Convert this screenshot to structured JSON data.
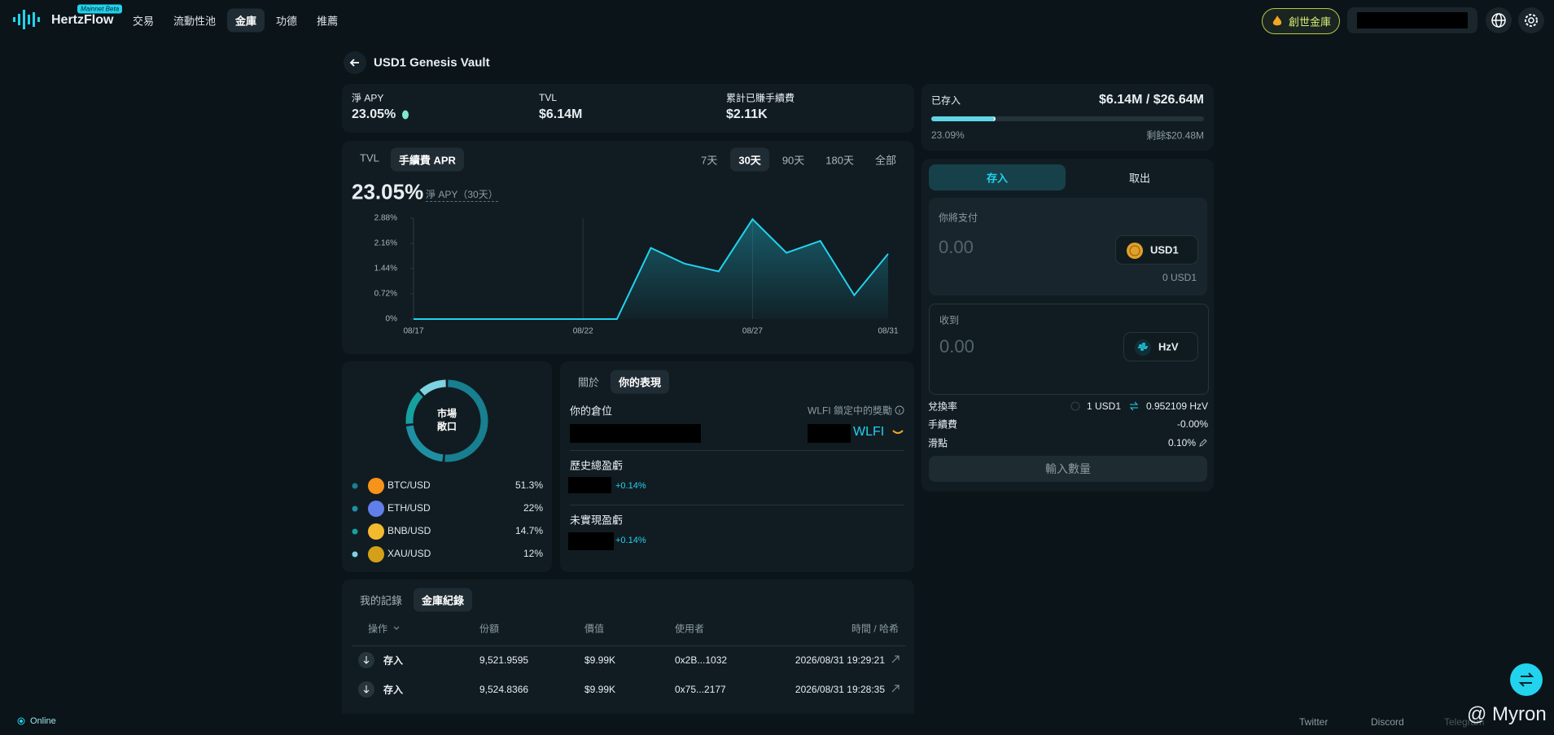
{
  "nav": {
    "logo": "HertzFlow",
    "badge": "Mainnet Beta",
    "links": {
      "items": [
        "交易",
        "流動性池",
        "金庫",
        "功德",
        "推薦"
      ],
      "active": 2
    },
    "genesis": "創世金庫"
  },
  "page_title": "USD1 Genesis Vault",
  "stats": [
    {
      "label": "淨 APY",
      "value": "23.05%"
    },
    {
      "label": "TVL",
      "value": "$6.14M"
    },
    {
      "label": "累計已賺手續費",
      "value": "$2.11K"
    }
  ],
  "capacity": {
    "label": "已存入",
    "value": "$6.14M / $26.64M",
    "filled": {
      "value": 23.09,
      "label": "23.09%"
    },
    "remaining": "剩餘$20.48M"
  },
  "chart": {
    "tabs": {
      "items": [
        "TVL",
        "手續費 APR"
      ],
      "active": 1
    },
    "ranges": {
      "items": [
        "7天",
        "30天",
        "90天",
        "180天",
        "全部"
      ],
      "active": 1
    },
    "headline": "23.05%",
    "headline_label": "淨 APY（30天）"
  },
  "chart_data": [
    {
      "type": "line",
      "categories": [
        "08/17",
        null,
        null,
        null,
        null,
        "08/22",
        null,
        null,
        null,
        null,
        "08/27",
        null,
        null,
        null,
        "08/31"
      ],
      "values": [
        0,
        0,
        0,
        0,
        0,
        0,
        0,
        2.03,
        1.58,
        1.36,
        2.85,
        1.89,
        2.23,
        0.68,
        1.86
      ],
      "color": "#22d3ee",
      "ylim": [
        0,
        2.88
      ],
      "yticks": [
        {
          "value": 0,
          "label": "0%"
        },
        {
          "value": 0.72,
          "label": "0.72%"
        },
        {
          "value": 1.44,
          "label": "1.44%"
        },
        {
          "value": 2.16,
          "label": "2.16%"
        },
        {
          "value": 2.88,
          "label": "2.88%"
        }
      ],
      "grid": "x"
    },
    {
      "type": "pie",
      "center_label": [
        "市場",
        "敞口"
      ],
      "categories": [
        "BTC/USD",
        "ETH/USD",
        "BNB/USD",
        "XAU/USD"
      ],
      "values": [
        51.3,
        22,
        14.7,
        12
      ],
      "value_labels": [
        "51.3%",
        "22%",
        "14.7%",
        "12%"
      ],
      "colors": [
        "#177f8f",
        "#1f90a3",
        "#16a0a0",
        "#7dd3e0"
      ]
    }
  ],
  "performance": {
    "tabs": {
      "items": [
        "關於",
        "你的表現"
      ],
      "active": 1
    },
    "position": "你的倉位",
    "reward_label": "WLFI 鎖定中的獎勵",
    "reward_token": "WLFI",
    "history_label": "歷史總盈虧",
    "history_value": "+0.14%",
    "unrealized_label": "未實現盈虧",
    "unrealized_value": "+0.14%"
  },
  "records": {
    "tabs": {
      "items": [
        "我的記錄",
        "金庫紀錄"
      ],
      "active": 1
    },
    "headers": [
      "操作",
      "份額",
      "價值",
      "使用者",
      "時間 / 哈希"
    ],
    "rows": [
      [
        "存入",
        "9,521.9595",
        "$9.99K",
        "0x2B...1032",
        "2026/08/31 19:29:21"
      ],
      [
        "存入",
        "9,524.8366",
        "$9.99K",
        "0x75...2177",
        "2026/08/31 19:28:35"
      ]
    ]
  },
  "trade": {
    "tabs": {
      "items": [
        "存入",
        "取出"
      ],
      "active": 0
    },
    "pay_label": "你將支付",
    "pay_amount": "0.00",
    "pay_token": "USD1",
    "balance": "0 USD1",
    "receive_label": "收到",
    "receive_amount": "0.00",
    "receive_token": "HzV",
    "rate_label": "兌換率",
    "rate_from": "1 USD1",
    "rate_to": "0.952109 HzV",
    "fee_label": "手續費",
    "fee": "-0.00%",
    "slippage_label": "滑點",
    "slippage": "0.10%",
    "button": "輸入數量"
  },
  "footer": {
    "status": "Online",
    "links": [
      "Twitter",
      "Discord",
      "Telegram"
    ],
    "watermark": "@ Myron"
  }
}
